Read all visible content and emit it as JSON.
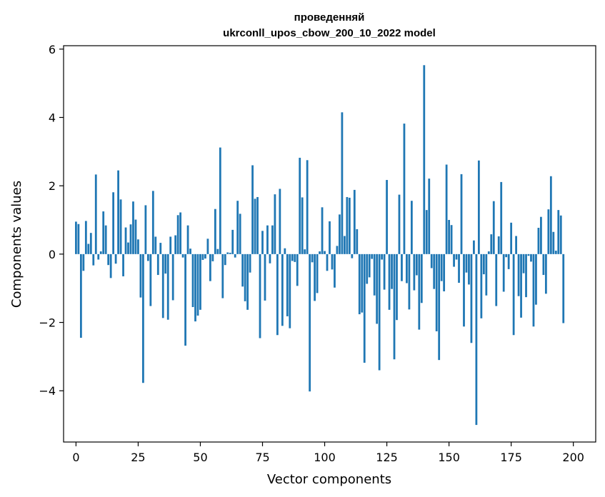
{
  "chart_data": {
    "type": "bar",
    "title_line1": "проведенняй",
    "title_line2": "ukrconll_upos_cbow_200_10_2022 model",
    "xlabel": "Vector components",
    "ylabel": "Components values",
    "xlim": [
      -5,
      209
    ],
    "ylim": [
      -5.5,
      6.1
    ],
    "xticks": [
      0,
      25,
      50,
      75,
      100,
      125,
      150,
      175,
      200
    ],
    "yticks": [
      -4,
      -2,
      0,
      2,
      4,
      6
    ],
    "ytick_labels": [
      "−4",
      "−2",
      "0",
      "2",
      "4",
      "6"
    ],
    "bar_color": "#1f77b4",
    "grid": false,
    "values": [
      0.95,
      0.88,
      -2.45,
      -0.49,
      0.97,
      0.3,
      0.62,
      -0.33,
      2.33,
      -0.16,
      0.08,
      1.25,
      0.84,
      -0.32,
      -0.7,
      1.81,
      -0.28,
      2.45,
      1.6,
      -0.65,
      0.78,
      0.34,
      0.87,
      1.54,
      1.01,
      0.43,
      -1.27,
      -3.77,
      1.43,
      -0.2,
      -1.52,
      1.85,
      0.51,
      -0.61,
      0.33,
      -1.87,
      -0.57,
      -1.92,
      0.51,
      -1.35,
      0.55,
      1.14,
      1.22,
      -0.1,
      -2.68,
      0.84,
      0.16,
      -1.55,
      -1.97,
      -1.8,
      -1.63,
      -0.17,
      -0.13,
      0.45,
      -0.79,
      -0.21,
      1.32,
      0.15,
      3.12,
      -1.29,
      -0.32,
      0.05,
      0.04,
      0.71,
      -0.1,
      1.56,
      1.18,
      -0.95,
      -1.38,
      -1.63,
      -0.54,
      2.6,
      1.62,
      1.67,
      -2.46,
      0.68,
      -1.36,
      0.84,
      -0.27,
      0.84,
      1.75,
      -2.37,
      1.91,
      -2.1,
      0.17,
      -1.82,
      -2.17,
      -0.2,
      -0.23,
      -0.93,
      2.82,
      1.66,
      0.14,
      2.75,
      -4.02,
      -0.24,
      -1.37,
      -1.14,
      0.08,
      1.37,
      0.09,
      -0.49,
      0.96,
      -0.45,
      -0.98,
      0.24,
      1.16,
      4.15,
      0.53,
      1.67,
      1.65,
      -0.12,
      1.88,
      0.73,
      -1.76,
      -1.71,
      -3.18,
      -0.87,
      -0.68,
      -0.14,
      -1.21,
      -2.04,
      -3.4,
      -0.16,
      -1.04,
      2.17,
      -1.63,
      -1.02,
      -3.08,
      -1.93,
      1.74,
      -0.79,
      3.82,
      -0.85,
      -1.62,
      1.56,
      -1.06,
      -0.62,
      -2.21,
      -1.43,
      5.53,
      1.29,
      2.21,
      -0.41,
      -1.02,
      -2.26,
      -3.1,
      -0.79,
      -1.09,
      2.62,
      1.0,
      0.85,
      -0.37,
      -0.16,
      -0.84,
      2.34,
      -2.12,
      -0.54,
      -0.89,
      -2.6,
      0.4,
      -5.0,
      2.74,
      -1.88,
      -0.59,
      -1.21,
      0.08,
      0.58,
      1.55,
      -1.52,
      0.52,
      2.11,
      -1.1,
      -0.09,
      -0.44,
      0.92,
      -2.37,
      0.53,
      -1.23,
      -1.86,
      -0.56,
      -1.26,
      -0.05,
      -0.22,
      -2.12,
      -1.48,
      0.77,
      1.09,
      -0.61,
      -1.16,
      1.31,
      2.28,
      0.65,
      0.1,
      1.29,
      1.13,
      -2.02
    ]
  }
}
